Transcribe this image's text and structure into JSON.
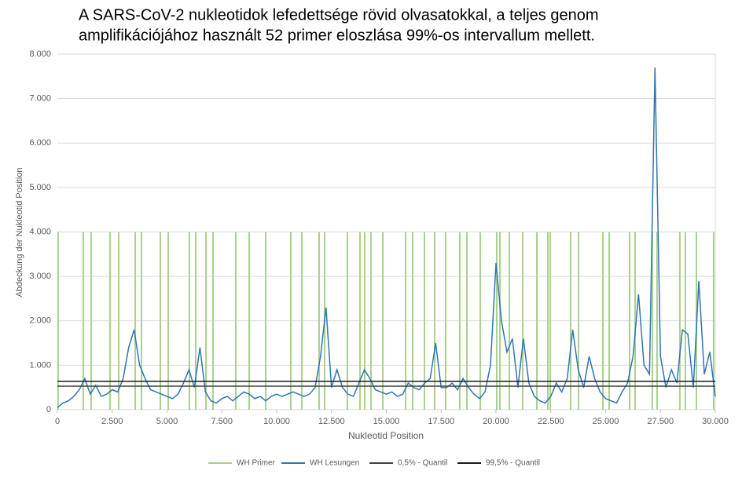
{
  "chart_data": {
    "type": "line",
    "title": [
      "A SARS-CoV-2 nukleotidok lefedettsége rövid olvasatokkal, a teljes genom",
      "amplifikációjához használt 52 primer eloszlása 99%-os intervallum mellett."
    ],
    "x_label": "Nukleotid Position",
    "y_label": "Abdeckung der Nukleotid Position",
    "xlim": [
      0,
      30000
    ],
    "ylim": [
      0,
      8000
    ],
    "xticks": [
      0,
      {
        "value": 2500,
        "label": "2.500"
      },
      {
        "value": 5000,
        "label": "5.000"
      },
      {
        "value": 7500,
        "label": "7.500"
      },
      {
        "value": 10000,
        "label": "10.000"
      },
      {
        "value": 12500,
        "label": "12.500"
      },
      {
        "value": 15000,
        "label": "15.000"
      },
      {
        "value": 17500,
        "label": "17.500"
      },
      {
        "value": 20000,
        "label": "20.000"
      },
      {
        "value": 22500,
        "label": "22.500"
      },
      {
        "value": 25000,
        "label": "25.000"
      },
      {
        "value": 27500,
        "label": "27.500"
      },
      {
        "value": 30000,
        "label": "30.000"
      }
    ],
    "yticks": [
      0,
      {
        "value": 1000,
        "label": "1.000"
      },
      {
        "value": 2000,
        "label": "2.000"
      },
      {
        "value": 3000,
        "label": "3.000"
      },
      {
        "value": 4000,
        "label": "4.000"
      },
      {
        "value": 5000,
        "label": "5.000"
      },
      {
        "value": 6000,
        "label": "6.000"
      },
      {
        "value": 7000,
        "label": "7.000"
      },
      {
        "value": 8000,
        "label": "8.000"
      }
    ],
    "grid": true,
    "legend": "bottom",
    "series": [
      {
        "name": "WH Primer",
        "type": "vlines",
        "color": "#a9d18e",
        "x": [
          30,
          1180,
          1540,
          2400,
          2795,
          3550,
          3835,
          4695,
          5055,
          6020,
          6310,
          6775,
          7095,
          8135,
          8745,
          9500,
          10645,
          11145,
          11935,
          12185,
          13225,
          13800,
          14015,
          14300,
          14840,
          15880,
          16200,
          16740,
          17205,
          17705,
          18350,
          18675,
          19285,
          20035,
          20180,
          20610,
          21220,
          21865,
          22365,
          22475,
          23405,
          23765,
          24875,
          25160,
          26095,
          26345,
          27130,
          27345,
          28385,
          28635,
          29140,
          29925
        ],
        "values": [
          4000,
          4000,
          4000,
          4000,
          4000,
          4000,
          4000,
          4000,
          4000,
          4000,
          4000,
          4000,
          4000,
          4000,
          4000,
          4000,
          4000,
          4000,
          4000,
          4000,
          4000,
          4000,
          4000,
          4000,
          4000,
          4000,
          4000,
          4000,
          4000,
          4000,
          4000,
          4000,
          4000,
          4000,
          4000,
          4000,
          4000,
          4000,
          4000,
          4000,
          4000,
          4000,
          4000,
          4000,
          4000,
          4000,
          4000,
          4000,
          4000,
          4000,
          4000,
          4000
        ]
      },
      {
        "name": "WH Lesungen",
        "type": "line",
        "color": "#2e75b6",
        "x": [
          0,
          250,
          500,
          750,
          1000,
          1250,
          1500,
          1750,
          2000,
          2250,
          2500,
          2750,
          3000,
          3250,
          3500,
          3750,
          4000,
          4250,
          4500,
          4750,
          5000,
          5250,
          5500,
          5750,
          6000,
          6250,
          6500,
          6750,
          7000,
          7250,
          7500,
          7750,
          8000,
          8250,
          8500,
          8750,
          9000,
          9250,
          9500,
          9750,
          10000,
          10250,
          10500,
          10750,
          11000,
          11250,
          11500,
          11750,
          12000,
          12250,
          12500,
          12750,
          13000,
          13250,
          13500,
          13750,
          14000,
          14250,
          14500,
          14750,
          15000,
          15250,
          15500,
          15750,
          16000,
          16250,
          16500,
          16750,
          17000,
          17250,
          17500,
          17750,
          18000,
          18250,
          18500,
          18750,
          19000,
          19250,
          19500,
          19750,
          20000,
          20250,
          20500,
          20750,
          21000,
          21250,
          21500,
          21750,
          22000,
          22250,
          22500,
          22750,
          23000,
          23250,
          23500,
          23750,
          24000,
          24250,
          24500,
          24750,
          25000,
          25250,
          25500,
          25750,
          26000,
          26250,
          26500,
          26750,
          27000,
          27250,
          27500,
          27750,
          28000,
          28250,
          28500,
          28750,
          29000,
          29250,
          29500,
          29750,
          30000
        ],
        "values": [
          50,
          150,
          200,
          300,
          450,
          700,
          350,
          550,
          300,
          350,
          450,
          400,
          700,
          1400,
          1800,
          1000,
          700,
          450,
          400,
          350,
          300,
          250,
          350,
          600,
          900,
          500,
          1400,
          400,
          200,
          150,
          250,
          300,
          200,
          300,
          400,
          350,
          250,
          300,
          200,
          300,
          350,
          300,
          350,
          400,
          350,
          300,
          350,
          500,
          1200,
          2300,
          500,
          900,
          500,
          350,
          300,
          600,
          900,
          700,
          450,
          400,
          350,
          400,
          300,
          350,
          600,
          500,
          450,
          600,
          700,
          1500,
          500,
          500,
          600,
          450,
          700,
          500,
          350,
          250,
          400,
          1000,
          3300,
          2000,
          1300,
          1600,
          500,
          1600,
          600,
          300,
          200,
          150,
          300,
          600,
          400,
          700,
          1800,
          900,
          500,
          1200,
          700,
          400,
          250,
          200,
          150,
          400,
          600,
          1200,
          2600,
          1000,
          800,
          7700,
          1200,
          500,
          900,
          600,
          1800,
          1700,
          500,
          2900,
          800,
          1300,
          300
        ]
      },
      {
        "name": "0,5% - Quantil",
        "type": "hline",
        "color": "#404040",
        "values": [
          530
        ]
      },
      {
        "name": "99,5% - Quantil",
        "type": "hline",
        "color": "#1a1a1a",
        "values": [
          640
        ]
      }
    ]
  }
}
